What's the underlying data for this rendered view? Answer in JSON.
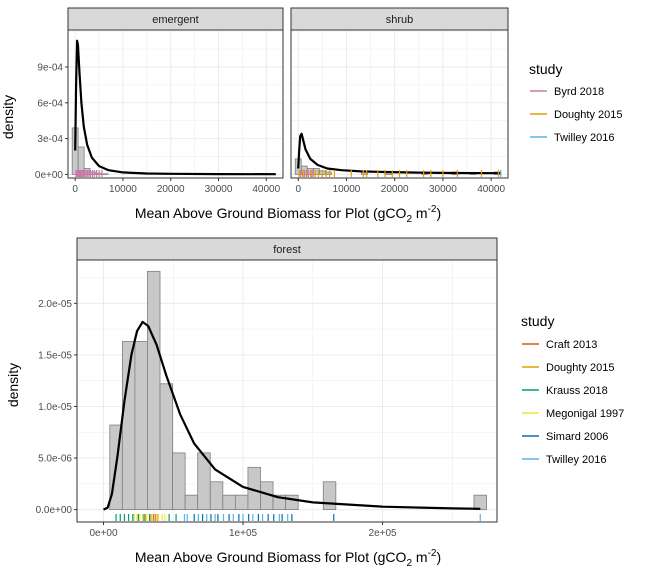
{
  "chart_data": [
    {
      "type": "histogram-density",
      "panels": [
        {
          "strip": "emergent",
          "xlim": [
            -1500,
            43500
          ],
          "ylim": [
            -3e-05,
            0.00121
          ],
          "xticks": [
            0,
            10000,
            20000,
            30000,
            40000
          ],
          "xtick_labels": [
            "0",
            "10000",
            "20000",
            "30000",
            "40000"
          ],
          "yticks": [
            0,
            0.0003,
            0.0006,
            0.0009
          ],
          "ytick_labels": [
            "0e+00",
            "3e-04",
            "6e-04",
            "9e-04"
          ],
          "bin_width": 1250,
          "bars": [
            {
              "x0": -625,
              "x1": 625,
              "y": 0.00039
            },
            {
              "x0": 625,
              "x1": 1875,
              "y": 0.00023
            },
            {
              "x0": 1875,
              "x1": 3125,
              "y": 5e-05
            },
            {
              "x0": 3125,
              "x1": 4375,
              "y": 2e-05
            },
            {
              "x0": 4375,
              "x1": 5625,
              "y": 1e-05
            },
            {
              "x0": 5625,
              "x1": 6875,
              "y": 5e-06
            }
          ],
          "density_curve": [
            [
              0,
              0.0002
            ],
            [
              200,
              0.00075
            ],
            [
              400,
              0.00112
            ],
            [
              600,
              0.00108
            ],
            [
              900,
              0.00085
            ],
            [
              1300,
              0.0006
            ],
            [
              1800,
              0.0004
            ],
            [
              2500,
              0.00025
            ],
            [
              3500,
              0.00014
            ],
            [
              5000,
              7e-05
            ],
            [
              7000,
              3.5e-05
            ],
            [
              10000,
              1.7e-05
            ],
            [
              15000,
              8e-06
            ],
            [
              20000,
              5e-06
            ],
            [
              30000,
              3e-06
            ],
            [
              42000,
              2e-06
            ]
          ],
          "rug": [
            {
              "study": "Byrd 2018",
              "x": [
                200,
                400,
                600,
                800,
                1000,
                1200,
                1400,
                1600,
                1800,
                2000,
                2300,
                2600,
                2900,
                3200,
                3600,
                4000,
                4500,
                5000,
                5600
              ]
            }
          ]
        },
        {
          "strip": "shrub",
          "xlim": [
            -1500,
            43500
          ],
          "ylim": [
            -3e-05,
            0.00121
          ],
          "xticks": [
            0,
            10000,
            20000,
            30000,
            40000
          ],
          "xtick_labels": [
            "0",
            "10000",
            "20000",
            "30000",
            "40000"
          ],
          "bin_width": 1250,
          "bars": [
            {
              "x0": -625,
              "x1": 625,
              "y": 0.00013
            },
            {
              "x0": 625,
              "x1": 1875,
              "y": 7e-05
            },
            {
              "x0": 1875,
              "x1": 3125,
              "y": 5e-05
            },
            {
              "x0": 3125,
              "x1": 4375,
              "y": 5e-05
            },
            {
              "x0": 4375,
              "x1": 5625,
              "y": 3e-05
            },
            {
              "x0": 5625,
              "x1": 6875,
              "y": 2e-05
            },
            {
              "x0": 13125,
              "x1": 14375,
              "y": 2e-05
            },
            {
              "x0": 18125,
              "x1": 19375,
              "y": 2e-05
            },
            {
              "x0": 25625,
              "x1": 26875,
              "y": 1e-05
            },
            {
              "x0": 31875,
              "x1": 33125,
              "y": 2e-05
            },
            {
              "x0": 35625,
              "x1": 36875,
              "y": 1e-05
            },
            {
              "x0": 40625,
              "x1": 41875,
              "y": 2e-05
            }
          ],
          "density_curve": [
            [
              0,
              5e-05
            ],
            [
              200,
              0.0002
            ],
            [
              400,
              0.00032
            ],
            [
              700,
              0.00034
            ],
            [
              1000,
              0.00029
            ],
            [
              1500,
              0.00021
            ],
            [
              2500,
              0.00013
            ],
            [
              4000,
              8e-05
            ],
            [
              6000,
              5e-05
            ],
            [
              9000,
              3.5e-05
            ],
            [
              13000,
              2.5e-05
            ],
            [
              18000,
              2e-05
            ],
            [
              25000,
              1.5e-05
            ],
            [
              32000,
              1.2e-05
            ],
            [
              42000,
              1e-05
            ]
          ],
          "rug": [
            {
              "study": "Byrd 2018",
              "x": [
                500,
                900,
                1300,
                1700,
                2100,
                2600,
                3100
              ]
            },
            {
              "study": "Doughty 2015",
              "x": [
                200,
                1000,
                2000,
                2800,
                3500,
                4200,
                5000,
                5800,
                6500,
                7500,
                11000,
                13500,
                14200,
                16500,
                18000,
                19500,
                21000,
                22500,
                26000,
                27500,
                30000,
                33000,
                38000,
                41500
              ]
            },
            {
              "study": "Twilley 2016",
              "x": [
                42000
              ]
            }
          ]
        }
      ],
      "xlabel": "Mean Above Ground Biomass for Plot (gCO",
      "xlabel_sub": "2",
      "xlabel_mid": " m",
      "xlabel_sup": "-2",
      "xlabel_end": ")",
      "ylabel": "density",
      "legend": {
        "title": "study",
        "position": "right",
        "entries": [
          {
            "label": "Byrd 2018",
            "color": "#CC79A7"
          },
          {
            "label": "Doughty 2015",
            "color": "#E69F00"
          },
          {
            "label": "Twilley 2016",
            "color": "#56B4E9"
          }
        ]
      }
    },
    {
      "type": "histogram-density",
      "panels": [
        {
          "strip": "forest",
          "xlim": [
            -19000,
            282000
          ],
          "ylim": [
            -1.2e-06,
            2.42e-05
          ],
          "xticks": [
            0,
            100000,
            200000
          ],
          "xtick_labels": [
            "0e+00",
            "1e+05",
            "2e+05"
          ],
          "yticks": [
            0,
            5e-06,
            1e-05,
            1.5e-05,
            2e-05
          ],
          "ytick_labels": [
            "0.0e+00",
            "5.0e-06",
            "1.0e-05",
            "1.5e-05",
            "2.0e-05"
          ],
          "bin_width": 9000,
          "bars": [
            {
              "x0": 4500,
              "x1": 13500,
              "y": 8.2e-06
            },
            {
              "x0": 13500,
              "x1": 22500,
              "y": 1.63e-05
            },
            {
              "x0": 22500,
              "x1": 31500,
              "y": 1.63e-05
            },
            {
              "x0": 31500,
              "x1": 40500,
              "y": 2.31e-05
            },
            {
              "x0": 40500,
              "x1": 49500,
              "y": 1.22e-05
            },
            {
              "x0": 49500,
              "x1": 58500,
              "y": 5.5e-06
            },
            {
              "x0": 58500,
              "x1": 67500,
              "y": 1.4e-06
            },
            {
              "x0": 67500,
              "x1": 76500,
              "y": 5.5e-06
            },
            {
              "x0": 76500,
              "x1": 85500,
              "y": 2.7e-06
            },
            {
              "x0": 85500,
              "x1": 94500,
              "y": 1.4e-06
            },
            {
              "x0": 94500,
              "x1": 103500,
              "y": 1.4e-06
            },
            {
              "x0": 103500,
              "x1": 112500,
              "y": 4.1e-06
            },
            {
              "x0": 112500,
              "x1": 121500,
              "y": 2.7e-06
            },
            {
              "x0": 121500,
              "x1": 130500,
              "y": 1.4e-06
            },
            {
              "x0": 130500,
              "x1": 139500,
              "y": 1.4e-06
            },
            {
              "x0": 157500,
              "x1": 166500,
              "y": 2.7e-06
            },
            {
              "x0": 265500,
              "x1": 274500,
              "y": 1.4e-06
            }
          ],
          "density_curve": [
            [
              0,
              0
            ],
            [
              3000,
              2e-07
            ],
            [
              6000,
              1.5e-06
            ],
            [
              10000,
              5.2e-06
            ],
            [
              15000,
              1.05e-05
            ],
            [
              20000,
              1.5e-05
            ],
            [
              24000,
              1.73e-05
            ],
            [
              28000,
              1.82e-05
            ],
            [
              32000,
              1.78e-05
            ],
            [
              38000,
              1.6e-05
            ],
            [
              45000,
              1.3e-05
            ],
            [
              55000,
              9.2e-06
            ],
            [
              65000,
              6.4e-06
            ],
            [
              80000,
              3.9e-06
            ],
            [
              100000,
              2.2e-06
            ],
            [
              125000,
              1.2e-06
            ],
            [
              150000,
              7e-07
            ],
            [
              200000,
              2.8e-07
            ],
            [
              250000,
              1.2e-07
            ],
            [
              270000,
              8e-08
            ]
          ],
          "rug": [
            {
              "study": "Craft 2013",
              "x": [
                36000,
                37500
              ]
            },
            {
              "study": "Doughty 2015",
              "x": [
                30000,
                34000,
                39000
              ]
            },
            {
              "study": "Krauss 2018",
              "x": [
                9000,
                12000,
                15000,
                18000,
                21000,
                25000,
                29000,
                33000,
                47000,
                52000
              ]
            },
            {
              "study": "Megonigal 1997",
              "x": [
                22000,
                24000,
                26000,
                28000,
                31000,
                35000,
                38000,
                42000,
                44000
              ]
            },
            {
              "study": "Simard 2006",
              "x": [
                65000,
                71000,
                77000,
                82000,
                90000,
                97000,
                104000,
                111000,
                118000,
                122000,
                128000,
                135000,
                165000
              ]
            },
            {
              "study": "Twilley 2016",
              "x": [
                58000,
                60000,
                68000,
                74000,
                80000,
                86000,
                93000,
                100000,
                107000,
                114000,
                126000,
                132000,
                270000
              ]
            }
          ]
        }
      ],
      "xlabel": "Mean Above Ground Biomass for Plot (gCO",
      "xlabel_sub": "2",
      "xlabel_mid": " m",
      "xlabel_sup": "-2",
      "xlabel_end": ")",
      "ylabel": "density",
      "legend": {
        "title": "study",
        "position": "right",
        "entries": [
          {
            "label": "Craft 2013",
            "color": "#D55E00"
          },
          {
            "label": "Doughty 2015",
            "color": "#E69F00"
          },
          {
            "label": "Krauss 2018",
            "color": "#009E73"
          },
          {
            "label": "Megonigal 1997",
            "color": "#F0E442"
          },
          {
            "label": "Simard 2006",
            "color": "#0072B2"
          },
          {
            "label": "Twilley 2016",
            "color": "#56B4E9"
          }
        ]
      }
    }
  ]
}
